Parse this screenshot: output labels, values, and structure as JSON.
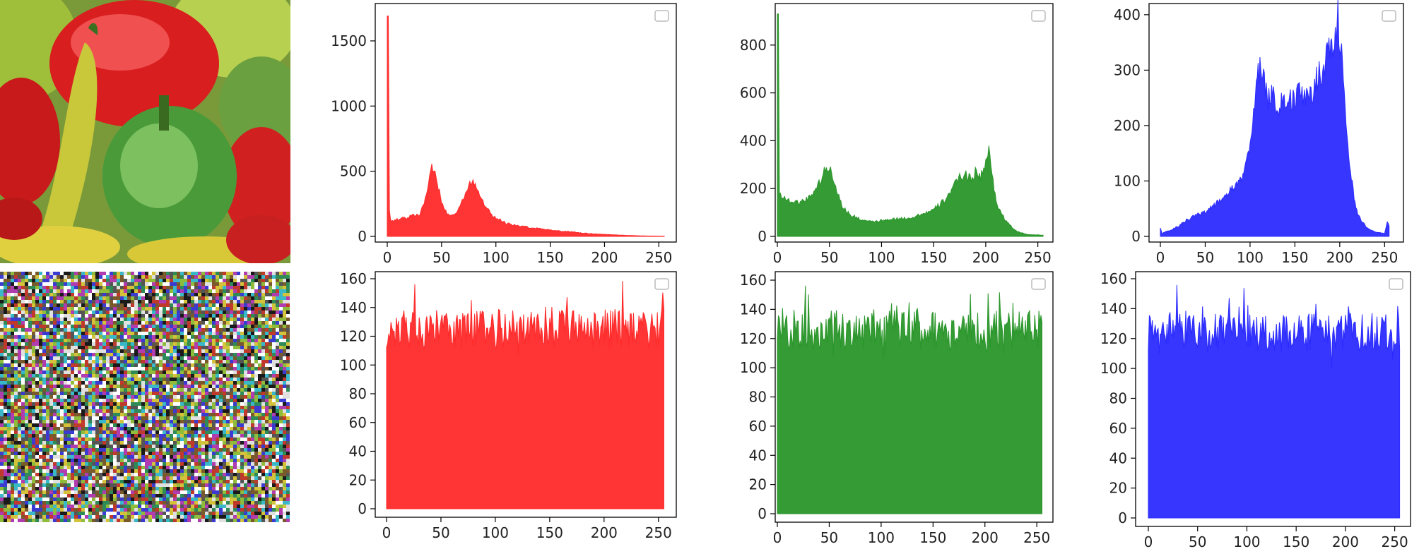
{
  "images": [
    {
      "kind": "photo",
      "subject": "peppers",
      "row": "top"
    },
    {
      "kind": "noise",
      "subject": "encrypted-peppers",
      "row": "bottom"
    }
  ],
  "colors": {
    "red": "#ff2a2a",
    "green": "#2a962a",
    "blue": "#2b2bff",
    "axis": "#000000"
  },
  "chart_data": [
    {
      "type": "area",
      "channel": "red",
      "color": "#ff2a2a",
      "xlim": [
        0,
        255
      ],
      "ylim": [
        0,
        1700
      ],
      "xticks": [
        0,
        50,
        100,
        150,
        200,
        250
      ],
      "yticks": [
        0,
        500,
        1000,
        1500
      ],
      "legend": "top-right",
      "grid": false,
      "profile": {
        "x": [
          0,
          1,
          2,
          3,
          10,
          20,
          30,
          35,
          40,
          42,
          45,
          50,
          55,
          60,
          65,
          70,
          75,
          78,
          80,
          85,
          90,
          95,
          100,
          110,
          120,
          130,
          140,
          150,
          160,
          170,
          180,
          190,
          200,
          210,
          220,
          230,
          240,
          255
        ],
        "y": [
          1690,
          1690,
          200,
          120,
          130,
          150,
          170,
          280,
          480,
          540,
          480,
          250,
          180,
          170,
          200,
          280,
          390,
          430,
          410,
          340,
          240,
          180,
          140,
          100,
          80,
          70,
          60,
          50,
          40,
          35,
          25,
          20,
          15,
          12,
          8,
          5,
          3,
          2
        ]
      }
    },
    {
      "type": "area",
      "channel": "green",
      "color": "#2a962a",
      "xlim": [
        0,
        255
      ],
      "ylim": [
        0,
        950
      ],
      "xticks": [
        0,
        50,
        100,
        150,
        200,
        250
      ],
      "yticks": [
        0,
        200,
        400,
        600,
        800
      ],
      "legend": "top-right",
      "grid": false,
      "profile": {
        "x": [
          0,
          1,
          2,
          5,
          10,
          20,
          30,
          40,
          45,
          50,
          55,
          60,
          65,
          70,
          80,
          90,
          100,
          110,
          120,
          130,
          140,
          150,
          160,
          170,
          175,
          180,
          185,
          190,
          195,
          200,
          203,
          205,
          208,
          212,
          220,
          230,
          240,
          255
        ],
        "y": [
          930,
          930,
          180,
          170,
          150,
          140,
          160,
          220,
          270,
          290,
          230,
          150,
          110,
          90,
          70,
          60,
          65,
          70,
          75,
          80,
          95,
          110,
          150,
          210,
          250,
          260,
          240,
          270,
          250,
          300,
          360,
          300,
          200,
          120,
          60,
          20,
          8,
          5
        ]
      }
    },
    {
      "type": "area",
      "channel": "blue",
      "color": "#2b2bff",
      "xlim": [
        0,
        260
      ],
      "ylim": [
        0,
        410
      ],
      "xticks": [
        0,
        50,
        100,
        150,
        200,
        250
      ],
      "yticks": [
        0,
        100,
        200,
        300,
        400
      ],
      "legend": "top-right",
      "grid": false,
      "profile": {
        "x": [
          0,
          2,
          5,
          10,
          20,
          30,
          40,
          50,
          60,
          70,
          80,
          90,
          95,
          100,
          105,
          110,
          112,
          115,
          120,
          125,
          130,
          135,
          140,
          145,
          150,
          155,
          160,
          165,
          170,
          175,
          180,
          185,
          190,
          195,
          198,
          202,
          205,
          210,
          215,
          220,
          230,
          240,
          250,
          253,
          255
        ],
        "y": [
          15,
          5,
          8,
          10,
          18,
          30,
          38,
          45,
          55,
          70,
          85,
          100,
          130,
          170,
          240,
          300,
          310,
          280,
          250,
          260,
          230,
          250,
          240,
          245,
          250,
          260,
          245,
          265,
          255,
          290,
          300,
          320,
          340,
          360,
          395,
          330,
          250,
          150,
          80,
          40,
          15,
          8,
          5,
          28,
          20
        ]
      }
    },
    {
      "type": "area",
      "channel": "red",
      "color": "#ff2a2a",
      "xlim": [
        0,
        256
      ],
      "ylim": [
        0,
        160
      ],
      "xticks": [
        0,
        50,
        100,
        150,
        200,
        250
      ],
      "yticks": [
        0,
        20,
        40,
        60,
        80,
        100,
        120,
        140,
        160
      ],
      "legend": "top-right",
      "grid": false,
      "profile": {
        "mean": 125,
        "amplitude": 14,
        "seed": 11
      }
    },
    {
      "type": "area",
      "channel": "green",
      "color": "#2a962a",
      "xlim": [
        0,
        256
      ],
      "ylim": [
        0,
        160
      ],
      "xticks": [
        0,
        50,
        100,
        150,
        200,
        250
      ],
      "yticks": [
        0,
        20,
        40,
        60,
        80,
        100,
        120,
        140,
        160
      ],
      "legend": "top-right",
      "grid": false,
      "profile": {
        "mean": 126,
        "amplitude": 14,
        "seed": 23
      }
    },
    {
      "type": "area",
      "channel": "blue",
      "color": "#2b2bff",
      "xlim": [
        0,
        256
      ],
      "ylim": [
        0,
        160
      ],
      "xticks": [
        0,
        50,
        100,
        150,
        200,
        250
      ],
      "yticks": [
        0,
        20,
        40,
        60,
        80,
        100,
        120,
        140,
        160
      ],
      "legend": "top-right",
      "grid": false,
      "profile": {
        "mean": 124,
        "amplitude": 13,
        "seed": 37
      }
    }
  ]
}
